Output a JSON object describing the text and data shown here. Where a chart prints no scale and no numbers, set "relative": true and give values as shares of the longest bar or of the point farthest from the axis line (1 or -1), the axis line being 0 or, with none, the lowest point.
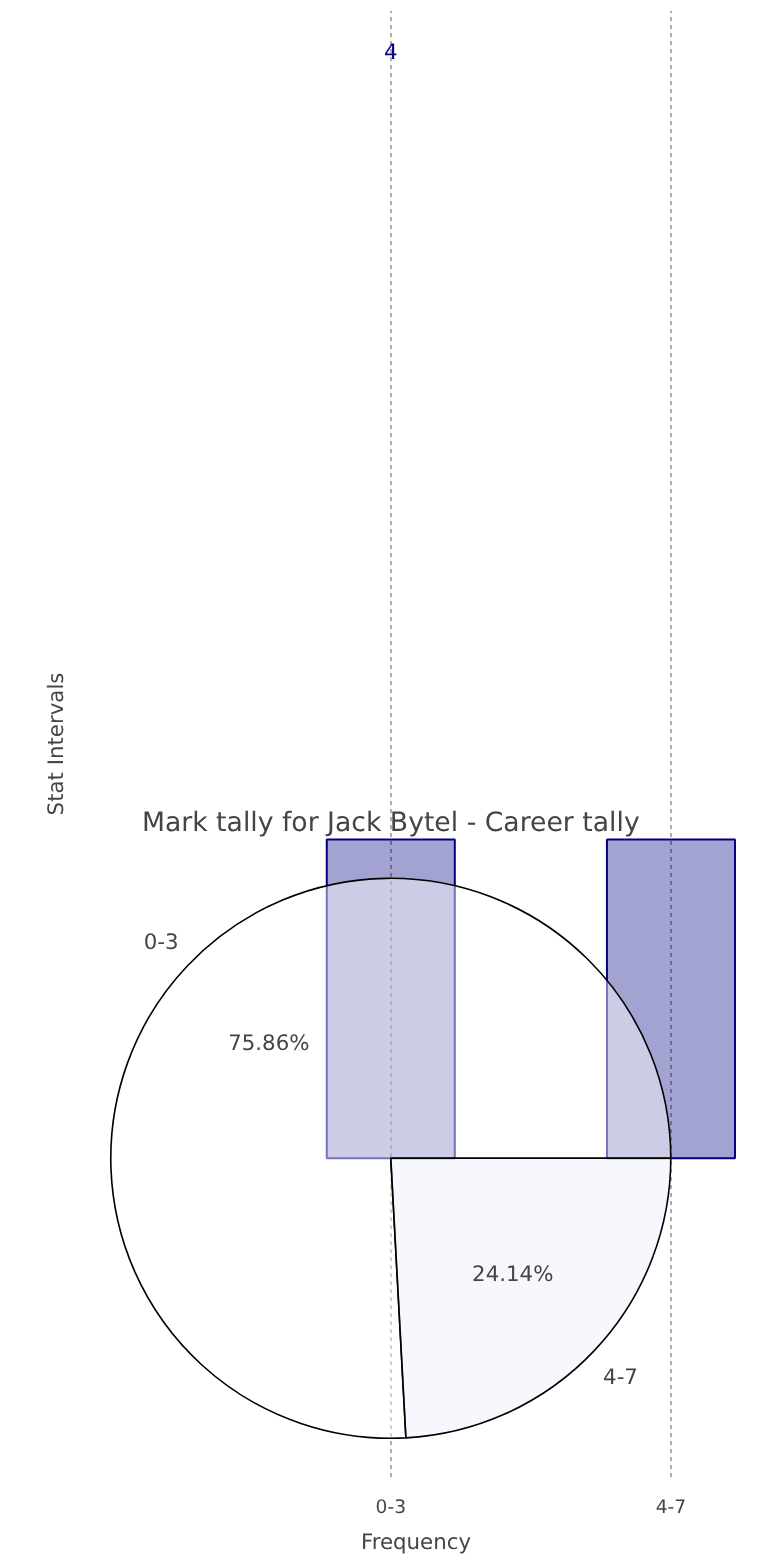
{
  "chart_data": [
    {
      "type": "bar",
      "categories": [
        "0-3",
        "4-7"
      ],
      "relative": true,
      "values": [
        1,
        1
      ],
      "color": "#000080",
      "xlabel": "Frequency",
      "ylabel": "Stat Intervals",
      "grid": "x",
      "tick_labels": "x",
      "annotations": [
        "4"
      ]
    },
    {
      "type": "pie",
      "title": "Mark tally for Jack Bytel - Career tally",
      "categories": [
        "0-3",
        "4-7"
      ],
      "values": [
        75.86,
        24.14
      ],
      "colors": [
        "#ffffff",
        "#eaf0fb"
      ],
      "value_labels": [
        "75.86%",
        "24.14%"
      ]
    }
  ]
}
